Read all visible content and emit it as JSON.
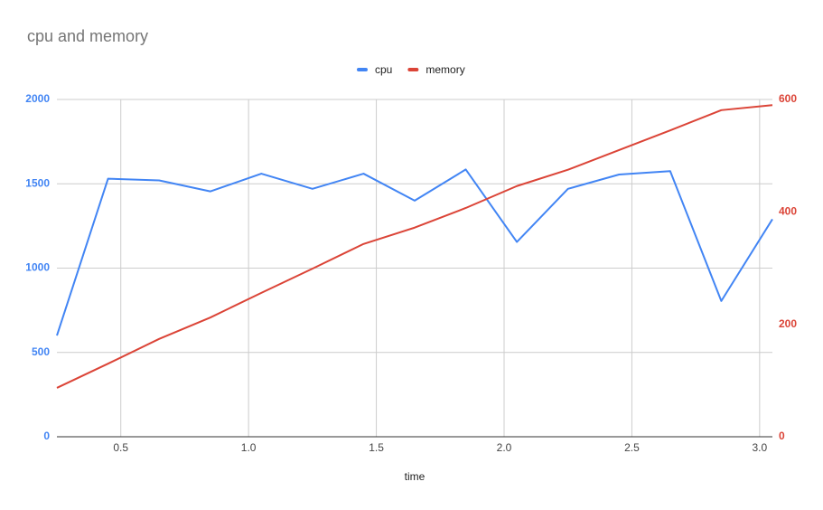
{
  "chart_data": {
    "type": "line",
    "title": "cpu and memory",
    "x_label": "time",
    "x": [
      0.25,
      0.45,
      0.65,
      0.85,
      1.05,
      1.25,
      1.45,
      1.65,
      1.85,
      2.05,
      2.25,
      2.45,
      2.65,
      2.85,
      3.05
    ],
    "series": [
      {
        "name": "cpu",
        "color": "#4285f4",
        "axis": "y",
        "values": [
          600,
          1530,
          1520,
          1455,
          1560,
          1470,
          1560,
          1400,
          1585,
          1155,
          1470,
          1555,
          1575,
          805,
          1290
        ]
      },
      {
        "name": "memory",
        "color": "#db4437",
        "axis": "y2",
        "values": [
          87,
          130,
          174,
          212,
          256,
          299,
          343,
          372,
          407,
          446,
          475,
          510,
          545,
          581,
          590
        ]
      }
    ],
    "xlim": [
      0.25,
      3.05
    ],
    "xticks": [
      0.5,
      1.0,
      1.5,
      2.0,
      2.5,
      3.0
    ],
    "ylim": [
      0,
      2000
    ],
    "yticks": [
      0,
      500,
      1000,
      1500,
      2000
    ],
    "y2lim": [
      0,
      600
    ],
    "y2ticks": [
      0,
      200,
      400,
      600
    ],
    "grid": true,
    "legend": "top"
  }
}
